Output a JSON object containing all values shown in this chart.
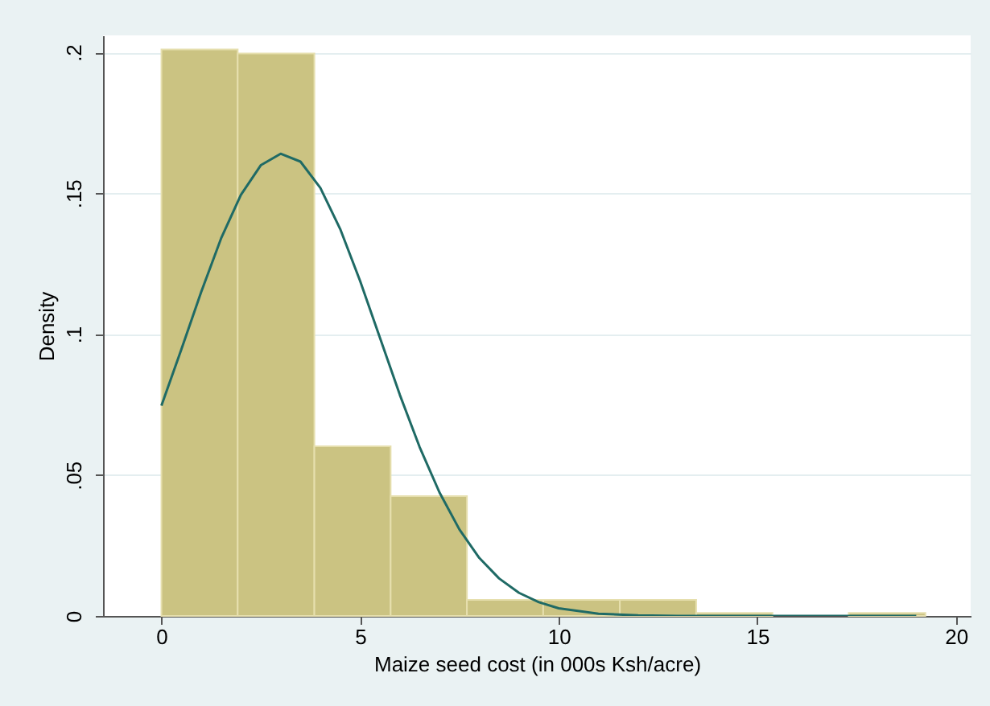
{
  "chart_data": {
    "type": "histogram",
    "xlabel": "Maize seed cost (in 000s Ksh/acre)",
    "ylabel": "Density",
    "bins": [
      0,
      1.92,
      3.85,
      5.77,
      7.69,
      9.61,
      11.54,
      13.46,
      15.38,
      17.3,
      19.23
    ],
    "values": [
      0.201,
      0.1996,
      0.0602,
      0.0425,
      0.0057,
      0.0057,
      0.0057,
      0.0011,
      0,
      0.0011
    ],
    "color": "#cbc382",
    "series": [
      {
        "type": "line",
        "color": "#1f6a65",
        "x": [
          0,
          0.5,
          1,
          1.5,
          2,
          2.5,
          3,
          3.5,
          4,
          4.5,
          5,
          5.5,
          6,
          6.5,
          7,
          7.5,
          8,
          8.5,
          9,
          9.5,
          10,
          11,
          12,
          13,
          14,
          16,
          19
        ],
        "values": [
          0.0746,
          0.0945,
          0.1149,
          0.1339,
          0.1494,
          0.1599,
          0.164,
          0.1612,
          0.1519,
          0.1373,
          0.1189,
          0.0987,
          0.0785,
          0.0599,
          0.0438,
          0.0307,
          0.0206,
          0.0133,
          0.0082,
          0.0049,
          0.0027,
          0.0008,
          0.0002,
          0,
          0,
          0,
          0
        ]
      }
    ],
    "xlim": [
      -1.47,
      20.37
    ],
    "ylim": [
      0,
      0.206
    ],
    "xticks": [
      0,
      5,
      10,
      15,
      20
    ],
    "yticks": [
      {
        "value": 0,
        "label": "0"
      },
      {
        "value": 0.05,
        "label": ".05"
      },
      {
        "value": 0.1,
        "label": ".1"
      },
      {
        "value": 0.15,
        "label": ".15"
      },
      {
        "value": 0.2,
        "label": ".2"
      }
    ],
    "grid": "y"
  }
}
